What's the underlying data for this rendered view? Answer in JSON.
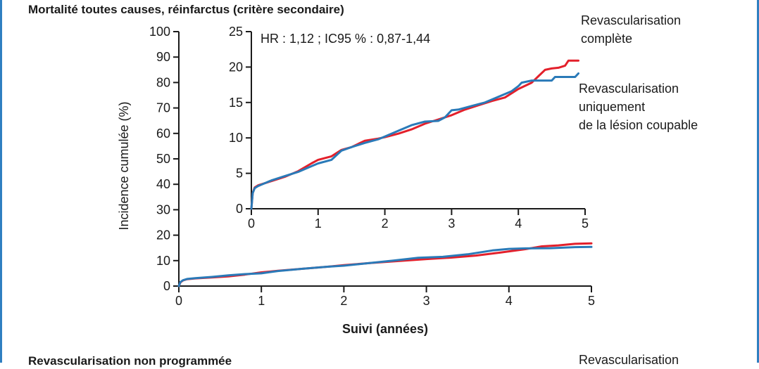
{
  "sections": [
    {
      "title": "Mortalité toutes causes, réinfarctus (critère secondaire)"
    },
    {
      "title": "Revascularisation non programmée"
    }
  ],
  "legend": {
    "complete": "Revascularisation\ncomplète",
    "culprit": "Revascularisation\nuniquement\nde la lésion coupable",
    "complete_next": "Revascularisation"
  },
  "colors": {
    "complete": "#e3202b",
    "culprit": "#2a7ab8",
    "frame": "#2f7fc1",
    "axis": "#1a1a1a"
  },
  "chart_data": [
    {
      "type": "line",
      "title": "",
      "xlabel": "Suivi (années)",
      "ylabel": "Incidence cumulée (%)",
      "xlim": [
        0,
        5
      ],
      "ylim": [
        0,
        100
      ],
      "xticks": [
        "0",
        "1",
        "2",
        "3",
        "4",
        "5"
      ],
      "yticks": [
        "0",
        "10",
        "20",
        "30",
        "40",
        "50",
        "60",
        "70",
        "80",
        "90",
        "100"
      ],
      "series": [
        {
          "name": "Revascularisation complète",
          "color": "#e3202b",
          "x": [
            0,
            0.02,
            0.05,
            0.1,
            0.2,
            0.4,
            0.6,
            0.8,
            1.0,
            1.2,
            1.5,
            1.8,
            2.0,
            2.3,
            2.6,
            3.0,
            3.3,
            3.6,
            3.9,
            4.2,
            4.4,
            4.6,
            4.8,
            5.0
          ],
          "y": [
            0,
            1.5,
            2.2,
            2.7,
            3.0,
            3.4,
            3.8,
            4.5,
            5.4,
            6.0,
            6.8,
            7.6,
            8.2,
            9.0,
            9.7,
            10.6,
            11.2,
            12.0,
            13.2,
            14.5,
            15.6,
            16.0,
            16.6,
            16.8
          ]
        },
        {
          "name": "Revascularisation uniquement de la lésion coupable",
          "color": "#2a7ab8",
          "x": [
            0,
            0.02,
            0.05,
            0.1,
            0.2,
            0.4,
            0.6,
            0.8,
            1.0,
            1.2,
            1.5,
            1.8,
            2.0,
            2.3,
            2.6,
            2.9,
            3.2,
            3.5,
            3.8,
            4.0,
            4.2,
            4.5,
            4.8,
            5.0
          ],
          "y": [
            0,
            1.6,
            2.3,
            2.8,
            3.1,
            3.6,
            4.2,
            4.7,
            5.0,
            5.9,
            6.8,
            7.6,
            8.0,
            9.0,
            10.0,
            11.1,
            11.5,
            12.5,
            14.0,
            14.6,
            14.8,
            14.9,
            15.3,
            15.4
          ]
        }
      ]
    },
    {
      "type": "line",
      "title": "",
      "annotation": "HR : 1,12 ; IC95 % : 0,87-1,44",
      "xlim": [
        0,
        5
      ],
      "ylim": [
        0,
        25
      ],
      "xticks": [
        "0",
        "1",
        "2",
        "3",
        "4",
        "5"
      ],
      "yticks": [
        "0",
        "5",
        "10",
        "15",
        "20",
        "25"
      ],
      "series": [
        {
          "name": "Revascularisation complète",
          "color": "#e3202b",
          "x": [
            0,
            0.02,
            0.05,
            0.1,
            0.3,
            0.5,
            0.7,
            0.9,
            1.0,
            1.2,
            1.35,
            1.5,
            1.7,
            1.9,
            2.0,
            2.2,
            2.4,
            2.6,
            2.8,
            3.0,
            3.2,
            3.4,
            3.6,
            3.8,
            4.0,
            4.2,
            4.3,
            4.4,
            4.5,
            4.6,
            4.7,
            4.75,
            4.9
          ],
          "y": [
            0,
            2.2,
            3.0,
            3.3,
            3.9,
            4.5,
            5.3,
            6.4,
            6.9,
            7.4,
            8.3,
            8.7,
            9.6,
            9.9,
            10.1,
            10.6,
            11.2,
            12.0,
            12.6,
            13.2,
            14.0,
            14.6,
            15.2,
            15.7,
            16.9,
            17.8,
            18.7,
            19.6,
            19.8,
            19.9,
            20.2,
            20.9,
            20.9
          ]
        },
        {
          "name": "Revascularisation uniquement de la lésion coupable",
          "color": "#2a7ab8",
          "x": [
            0,
            0.02,
            0.05,
            0.1,
            0.3,
            0.5,
            0.7,
            0.9,
            1.0,
            1.2,
            1.35,
            1.5,
            1.7,
            1.9,
            2.0,
            2.2,
            2.4,
            2.6,
            2.8,
            2.9,
            3.0,
            3.1,
            3.3,
            3.5,
            3.7,
            3.9,
            4.0,
            4.05,
            4.2,
            4.5,
            4.55,
            4.85,
            4.9
          ],
          "y": [
            0,
            2.2,
            2.9,
            3.2,
            4.0,
            4.6,
            5.2,
            6.0,
            6.4,
            6.9,
            8.2,
            8.7,
            9.3,
            9.8,
            10.2,
            11.0,
            11.8,
            12.3,
            12.4,
            12.9,
            13.9,
            14.0,
            14.5,
            15.0,
            15.8,
            16.6,
            17.3,
            17.8,
            18.1,
            18.1,
            18.6,
            18.6,
            19.1
          ]
        }
      ]
    }
  ]
}
